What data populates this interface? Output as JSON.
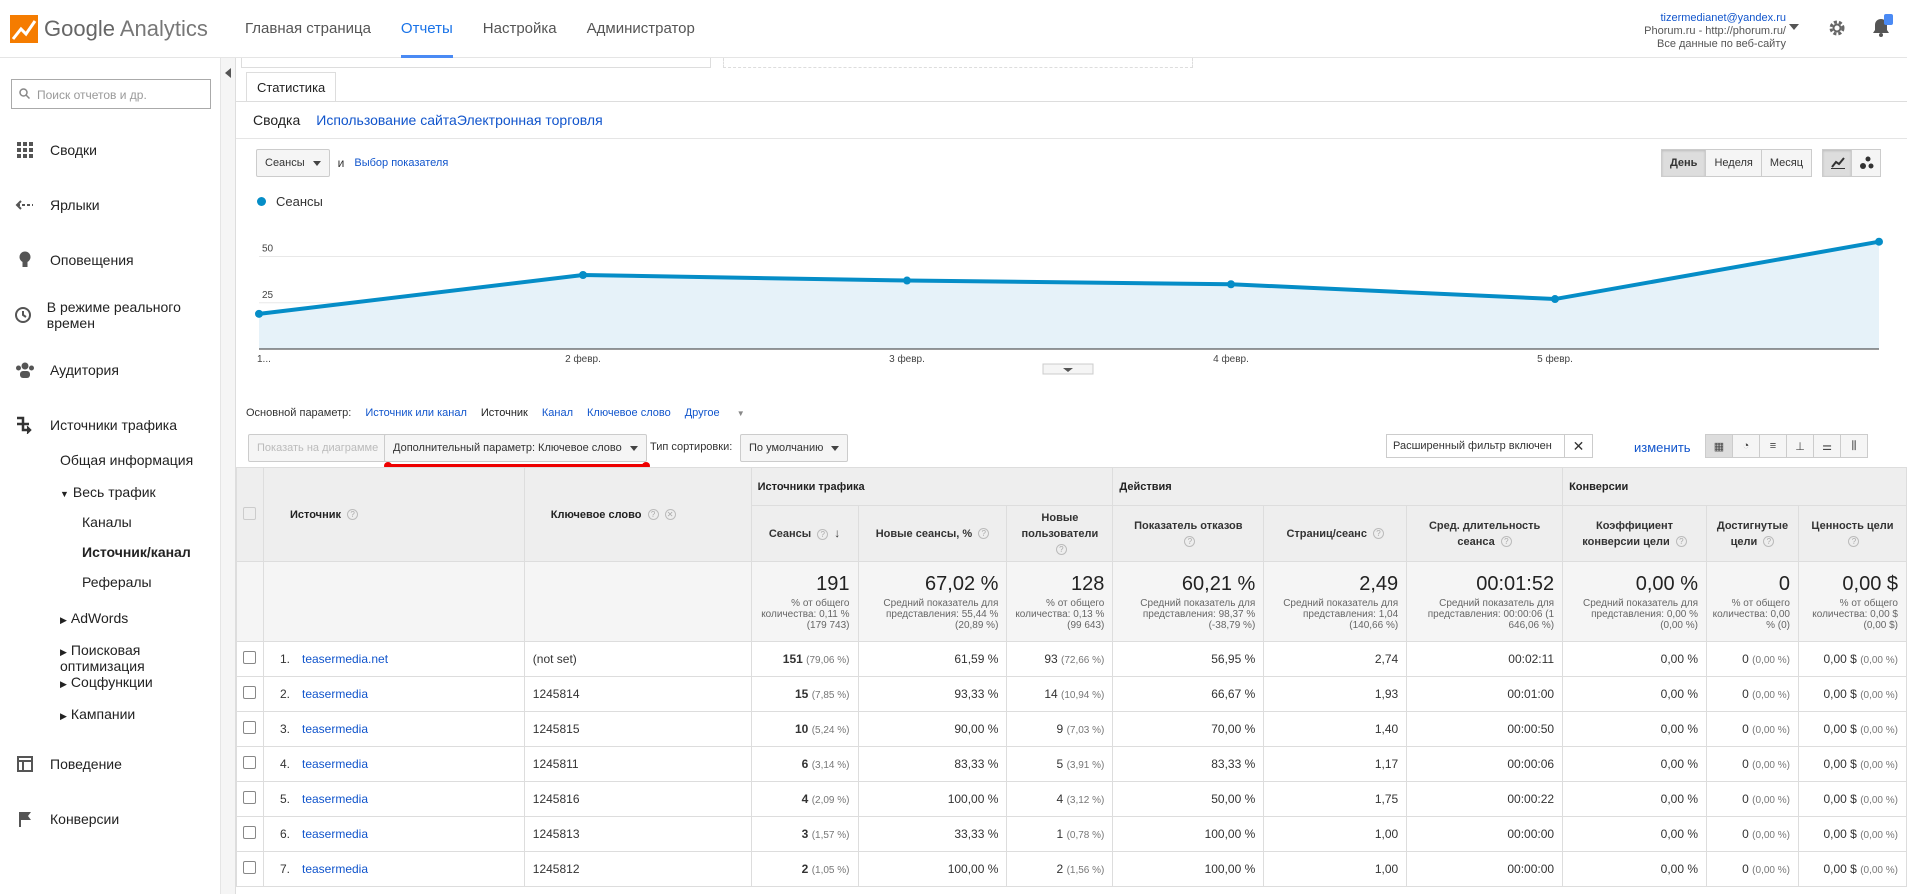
{
  "header": {
    "logo_text_1": "Google",
    "logo_text_2": "Analytics",
    "nav": [
      "Главная страница",
      "Отчеты",
      "Настройка",
      "Администратор"
    ],
    "account_email": "tizermedianet@yandex.ru",
    "account_property": "Phorum.ru - http://phorum.ru/",
    "account_view": "Все данные по веб-сайту"
  },
  "sidebar": {
    "search_placeholder": "Поиск отчетов и др.",
    "items": [
      "Сводки",
      "Ярлыки",
      "Оповещения",
      "В режиме реального времен",
      "Аудитория",
      "Источники трафика",
      "Поведение",
      "Конверсии"
    ],
    "traffic_sub": {
      "overview": "Общая информация",
      "all_traffic": "Весь трафик",
      "channels": "Каналы",
      "source_medium": "Источник/канал",
      "referrals": "Рефералы",
      "adwords": "AdWords",
      "seo": "Поисковая оптимизация",
      "social": "Соцфункции",
      "campaigns": "Кампании"
    }
  },
  "report": {
    "tab": "Статистика",
    "subtabs": [
      "Сводка",
      "Использование сайта",
      "Электронная торговля"
    ],
    "metric_select": "Сеансы",
    "and": "и",
    "choose_metric": "Выбор показателя",
    "periods": [
      "День",
      "Неделя",
      "Месяц"
    ],
    "primary_label": "Основной параметр:",
    "primary_options": [
      "Источник или канал",
      "Источник",
      "Канал",
      "Ключевое слово",
      "Другое"
    ],
    "plot_rows": "Показать на диаграмме",
    "secondary_dim": "Дополнительный параметр: Ключевое слово",
    "sort_label": "Тип сортировки:",
    "sort_value": "По умолчанию",
    "filter_text": "Расширенный фильтр включен",
    "change": "изменить"
  },
  "chart_data": {
    "type": "area",
    "series": [
      {
        "name": "Сеансы",
        "values": [
          19,
          40,
          37,
          35,
          27,
          58
        ]
      }
    ],
    "x": [
      "1...",
      "2 февр.",
      "3 февр.",
      "4 февр.",
      "5 февр.",
      ""
    ],
    "y_ticks": [
      25,
      50
    ],
    "ylim": [
      0,
      60
    ],
    "color": "#058dc7"
  },
  "table": {
    "col_source": "Источник",
    "col_keyword": "Ключевое слово",
    "groups": [
      "Источники трафика",
      "Действия",
      "Конверсии"
    ],
    "cols": [
      "Сеансы",
      "Новые сеансы, %",
      "Новые пользователи",
      "Показатель отказов",
      "Страниц/сеанс",
      "Сред. длительность сеанса",
      "Коэффициент конверсии цели",
      "Достигнутые цели",
      "Ценность цели"
    ],
    "totals": [
      {
        "big": "191",
        "sub": "% от общего количества: 0,11 % (179 743)"
      },
      {
        "big": "67,02 %",
        "sub": "Средний показатель для представления: 55,44 % (20,89 %)"
      },
      {
        "big": "128",
        "sub": "% от общего количества: 0,13 % (99 643)"
      },
      {
        "big": "60,21 %",
        "sub": "Средний показатель для представления: 98,37 % (-38,79 %)"
      },
      {
        "big": "2,49",
        "sub": "Средний показатель для представления: 1,04 (140,66 %)"
      },
      {
        "big": "00:01:52",
        "sub": "Средний показатель для представления: 00:00:06 (1 646,06 %)"
      },
      {
        "big": "0,00 %",
        "sub": "Средний показатель для представления: 0,00 % (0,00 %)"
      },
      {
        "big": "0",
        "sub": "% от общего количества: 0,00 % (0)"
      },
      {
        "big": "0,00 $",
        "sub": "% от общего количества: 0,00 $ (0,00 $)"
      }
    ],
    "rows": [
      {
        "n": "1.",
        "src": "teasermedia.net",
        "kw": "(not set)",
        "s": "151",
        "sp": "(79,06 %)",
        "ns": "61,59 %",
        "nu": "93",
        "nup": "(72,66 %)",
        "br": "56,95 %",
        "pps": "2,74",
        "dur": "00:02:11",
        "cr": "0,00 %",
        "g": "0",
        "gp": "(0,00 %)",
        "v": "0,00 $",
        "vp": "(0,00 %)"
      },
      {
        "n": "2.",
        "src": "teasermedia",
        "kw": "1245814",
        "s": "15",
        "sp": "(7,85 %)",
        "ns": "93,33 %",
        "nu": "14",
        "nup": "(10,94 %)",
        "br": "66,67 %",
        "pps": "1,93",
        "dur": "00:01:00",
        "cr": "0,00 %",
        "g": "0",
        "gp": "(0,00 %)",
        "v": "0,00 $",
        "vp": "(0,00 %)"
      },
      {
        "n": "3.",
        "src": "teasermedia",
        "kw": "1245815",
        "s": "10",
        "sp": "(5,24 %)",
        "ns": "90,00 %",
        "nu": "9",
        "nup": "(7,03 %)",
        "br": "70,00 %",
        "pps": "1,40",
        "dur": "00:00:50",
        "cr": "0,00 %",
        "g": "0",
        "gp": "(0,00 %)",
        "v": "0,00 $",
        "vp": "(0,00 %)"
      },
      {
        "n": "4.",
        "src": "teasermedia",
        "kw": "1245811",
        "s": "6",
        "sp": "(3,14 %)",
        "ns": "83,33 %",
        "nu": "5",
        "nup": "(3,91 %)",
        "br": "83,33 %",
        "pps": "1,17",
        "dur": "00:00:06",
        "cr": "0,00 %",
        "g": "0",
        "gp": "(0,00 %)",
        "v": "0,00 $",
        "vp": "(0,00 %)"
      },
      {
        "n": "5.",
        "src": "teasermedia",
        "kw": "1245816",
        "s": "4",
        "sp": "(2,09 %)",
        "ns": "100,00 %",
        "nu": "4",
        "nup": "(3,12 %)",
        "br": "50,00 %",
        "pps": "1,75",
        "dur": "00:00:22",
        "cr": "0,00 %",
        "g": "0",
        "gp": "(0,00 %)",
        "v": "0,00 $",
        "vp": "(0,00 %)"
      },
      {
        "n": "6.",
        "src": "teasermedia",
        "kw": "1245813",
        "s": "3",
        "sp": "(1,57 %)",
        "ns": "33,33 %",
        "nu": "1",
        "nup": "(0,78 %)",
        "br": "100,00 %",
        "pps": "1,00",
        "dur": "00:00:00",
        "cr": "0,00 %",
        "g": "0",
        "gp": "(0,00 %)",
        "v": "0,00 $",
        "vp": "(0,00 %)"
      },
      {
        "n": "7.",
        "src": "teasermedia",
        "kw": "1245812",
        "s": "2",
        "sp": "(1,05 %)",
        "ns": "100,00 %",
        "nu": "2",
        "nup": "(1,56 %)",
        "br": "100,00 %",
        "pps": "1,00",
        "dur": "00:00:00",
        "cr": "0,00 %",
        "g": "0",
        "gp": "(0,00 %)",
        "v": "0,00 $",
        "vp": "(0,00 %)"
      }
    ]
  }
}
